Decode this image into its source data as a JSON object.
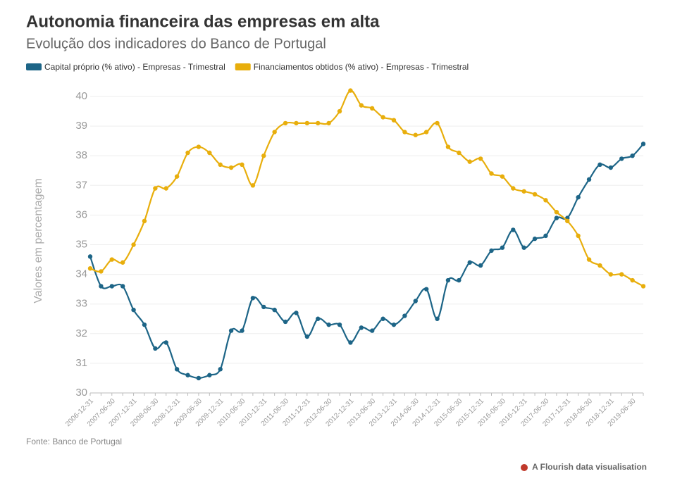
{
  "chart_data": {
    "type": "line",
    "title": "Autonomia financeira das empresas em alta",
    "subtitle": "Evolução dos indicadores do Banco de Portugal",
    "ylabel": "Valores em percentagem",
    "source": "Fonte: Banco de Portugal",
    "credit": "A Flourish data visualisation",
    "categories": [
      "2006-12-31",
      null,
      "2007-06-30",
      null,
      "2007-12-31",
      null,
      "2008-06-30",
      null,
      "2008-12-31",
      null,
      "2009-06-30",
      null,
      "2009-12-31",
      null,
      "2010-06-30",
      null,
      "2010-12-31",
      null,
      "2011-06-30",
      null,
      "2011-12-31",
      null,
      "2012-06-30",
      null,
      "2012-12-31",
      null,
      "2013-06-30",
      null,
      "2013-12-31",
      null,
      "2014-06-30",
      null,
      "2014-12-31",
      null,
      "2015-06-30",
      null,
      "2015-12-31",
      null,
      "2016-06-30",
      null,
      "2016-12-31",
      null,
      "2017-06-30",
      null,
      "2017-12-31",
      null,
      "2018-06-30",
      null,
      "2018-12-31",
      null,
      "2019-06-30",
      null
    ],
    "series": [
      {
        "name": "Capital próprio (% ativo) - Empresas - Trimestral",
        "color": "#1d6587",
        "values": [
          34.6,
          33.6,
          33.6,
          33.6,
          32.8,
          32.3,
          31.5,
          31.7,
          30.8,
          30.6,
          30.5,
          30.6,
          30.8,
          32.1,
          32.1,
          33.2,
          32.9,
          32.8,
          32.4,
          32.7,
          31.9,
          32.5,
          32.3,
          32.3,
          31.7,
          32.2,
          32.1,
          32.5,
          32.3,
          32.6,
          33.1,
          33.5,
          32.5,
          33.8,
          33.8,
          34.4,
          34.3,
          34.8,
          34.9,
          35.5,
          34.9,
          35.2,
          35.3,
          35.9,
          35.9,
          36.6,
          37.2,
          37.7,
          37.6,
          37.9,
          38.0,
          38.4
        ]
      },
      {
        "name": "Financiamentos obtidos (% ativo) - Empresas - Trimestral",
        "color": "#e8ae0c",
        "values": [
          34.2,
          34.1,
          34.5,
          34.4,
          35.0,
          35.8,
          36.9,
          36.9,
          37.3,
          38.1,
          38.3,
          38.1,
          37.7,
          37.6,
          37.7,
          37.0,
          38.0,
          38.8,
          39.1,
          39.1,
          39.1,
          39.1,
          39.1,
          39.5,
          40.2,
          39.7,
          39.6,
          39.3,
          39.2,
          38.8,
          38.7,
          38.8,
          39.1,
          38.3,
          38.1,
          37.8,
          37.9,
          37.4,
          37.3,
          36.9,
          36.8,
          36.7,
          36.5,
          36.1,
          35.8,
          35.3,
          34.5,
          34.3,
          34.0,
          34.0,
          33.8,
          33.6
        ]
      }
    ],
    "ylim": [
      30,
      40
    ],
    "yticks": [
      30,
      31,
      32,
      33,
      34,
      35,
      36,
      37,
      38,
      39,
      40
    ],
    "grid": true
  }
}
